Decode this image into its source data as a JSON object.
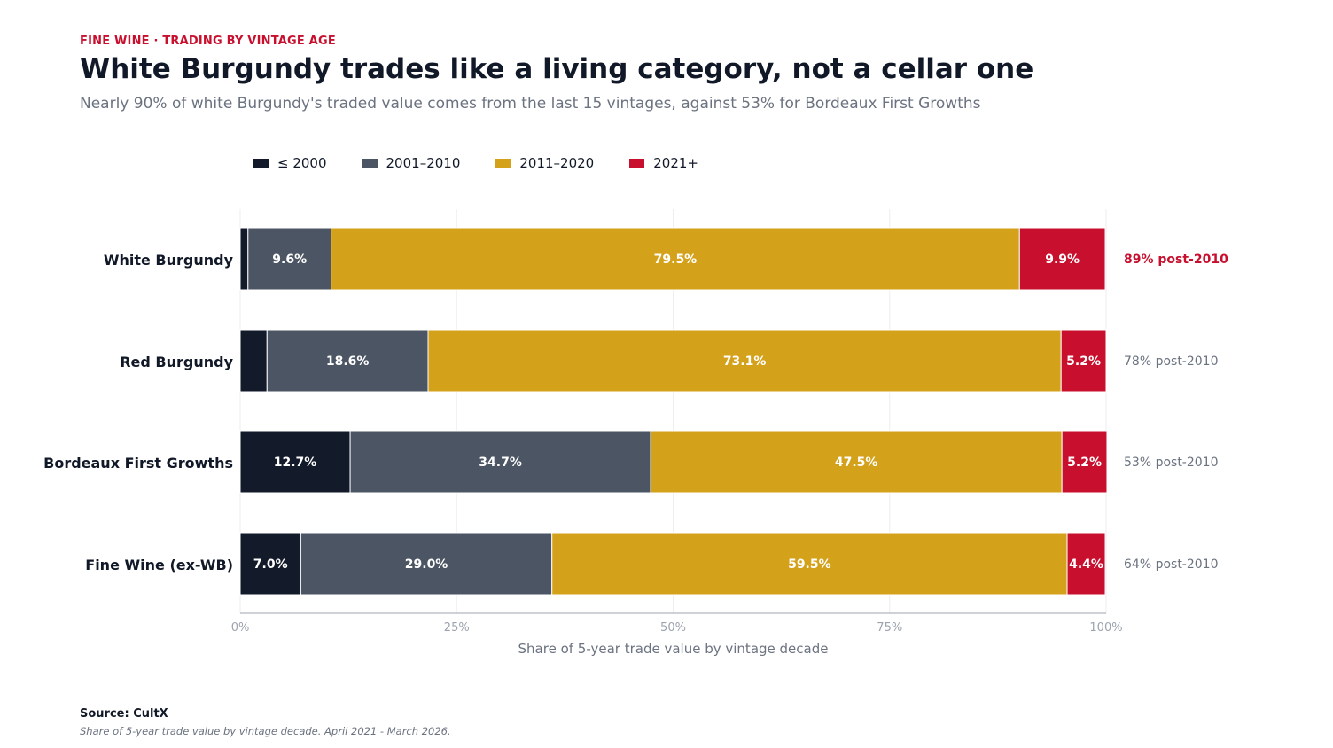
{
  "header": {
    "eyebrow": "FINE WINE · TRADING BY VINTAGE AGE",
    "title": "White Burgundy trades like a living category, not a cellar one",
    "subtitle": "Nearly 90% of white Burgundy's traded value comes from the last 15 vintages, against 53% for Bordeaux First Growths"
  },
  "legend": {
    "items": [
      {
        "label": "≤ 2000",
        "color": "#131a2a"
      },
      {
        "label": "2001–2010",
        "color": "#4b5563"
      },
      {
        "label": "2011–2020",
        "color": "#d4a11a"
      },
      {
        "label": "2021+",
        "color": "#c8102e"
      }
    ]
  },
  "chart_data": {
    "type": "bar",
    "orientation": "horizontal",
    "stacked": true,
    "categories": [
      "White Burgundy",
      "Red Burgundy",
      "Bordeaux First Growths",
      "Fine Wine (ex-WB)"
    ],
    "series": [
      {
        "name": "≤ 2000",
        "color": "#131a2a",
        "values": [
          0.9,
          3.1,
          12.7,
          7.0
        ],
        "labels": [
          "",
          "",
          "12.7%",
          "7.0%"
        ]
      },
      {
        "name": "2001–2010",
        "color": "#4b5563",
        "values": [
          9.6,
          18.6,
          34.7,
          29.0
        ],
        "labels": [
          "9.6%",
          "18.6%",
          "34.7%",
          "29.0%"
        ]
      },
      {
        "name": "2011–2020",
        "color": "#d4a11a",
        "values": [
          79.5,
          73.1,
          47.5,
          59.5
        ],
        "labels": [
          "79.5%",
          "73.1%",
          "47.5%",
          "59.5%"
        ]
      },
      {
        "name": "2021+",
        "color": "#c8102e",
        "values": [
          9.9,
          5.2,
          5.2,
          4.4
        ],
        "labels": [
          "9.9%",
          "5.2%",
          "5.2%",
          "4.4%"
        ]
      }
    ],
    "annotations": [
      "89% post-2010",
      "78% post-2010",
      "53% post-2010",
      "64% post-2010"
    ],
    "highlight_row": 0,
    "highlight_color": "#c8102e",
    "xlabel": "Share of 5-year trade value by vintage decade",
    "xlim": [
      0,
      100
    ],
    "xticks": [
      0,
      25,
      50,
      75,
      100
    ],
    "xtick_labels": [
      "0%",
      "25%",
      "50%",
      "75%",
      "100%"
    ],
    "grid": "vertical"
  },
  "footer": {
    "source": "Source: CultX",
    "note": "Share of 5-year trade value by vintage decade. April 2021 - March 2026."
  }
}
